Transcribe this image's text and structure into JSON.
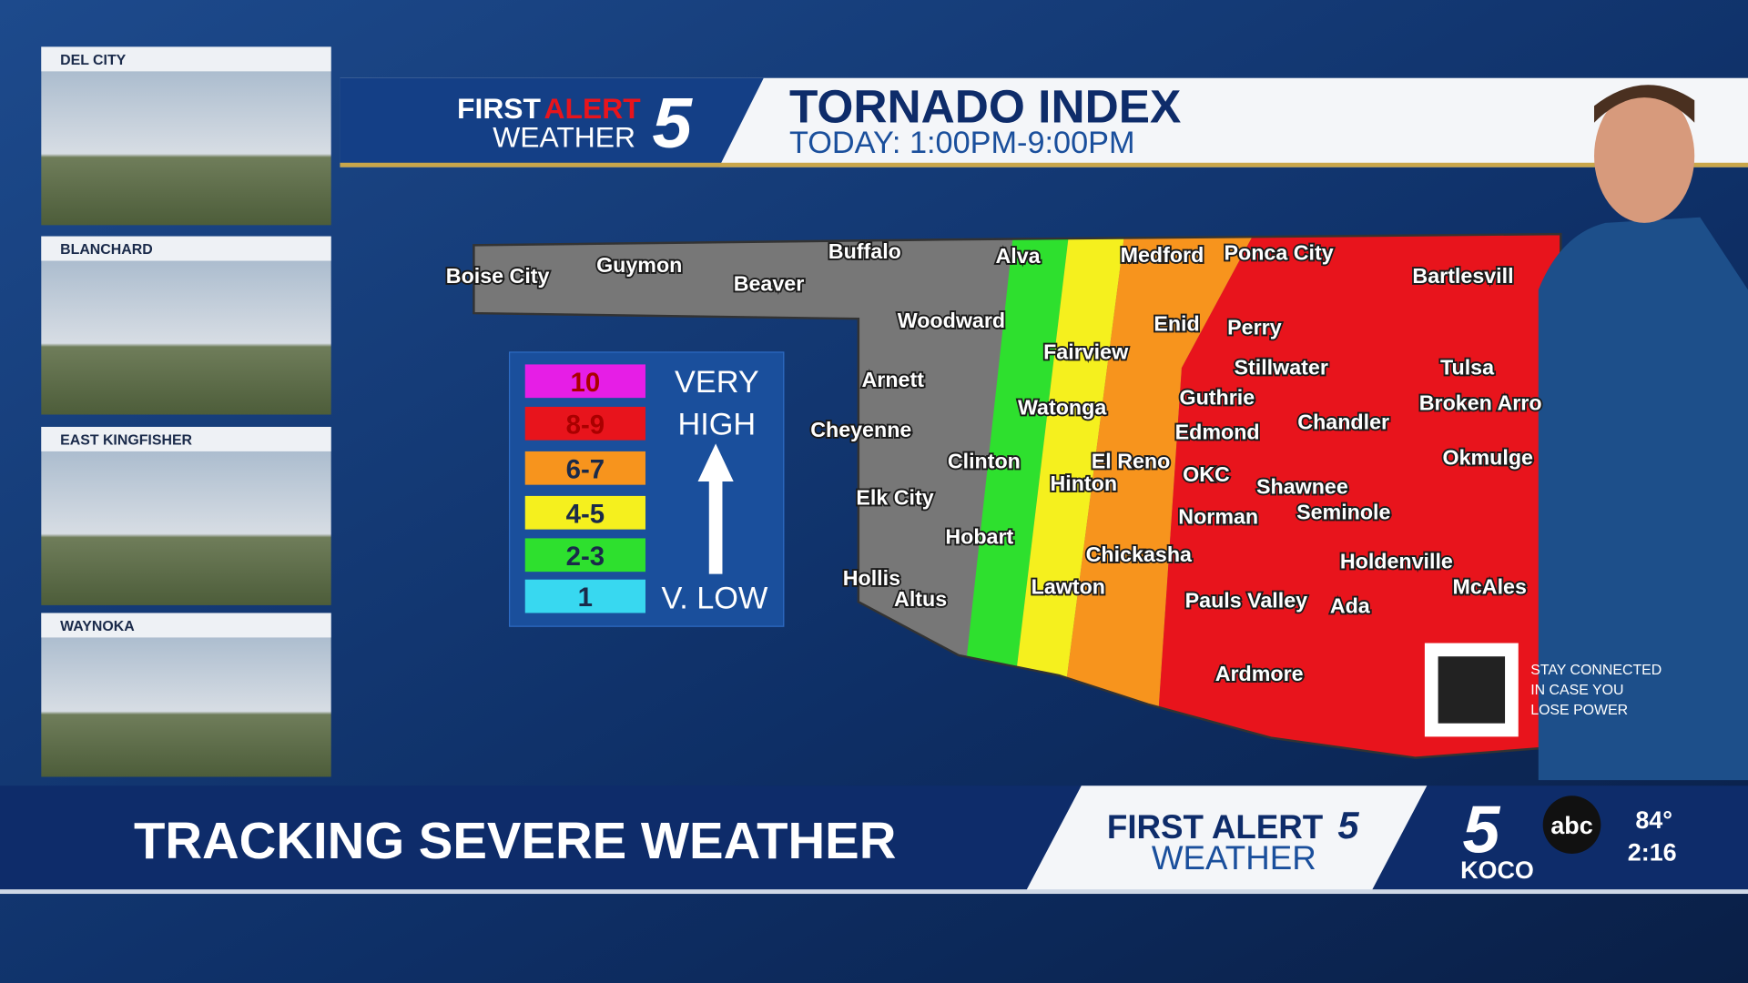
{
  "cameras": [
    "DEL CITY",
    "BLANCHARD",
    "EAST KINGFISHER",
    "WAYNOKA"
  ],
  "header": {
    "brand_first": "FIRST",
    "brand_alert": "ALERT",
    "brand_weather": "WEATHER",
    "brand_number": "5",
    "title": "TORNADO INDEX",
    "subtitle": "TODAY: 1:00PM-9:00PM"
  },
  "legend": {
    "levels": [
      {
        "label": "10",
        "color": "#e61ee6"
      },
      {
        "label": "8-9",
        "color": "#e8141c"
      },
      {
        "label": "6-7",
        "color": "#f7941d"
      },
      {
        "label": "4-5",
        "color": "#f5f01e"
      },
      {
        "label": "2-3",
        "color": "#2ee02e"
      },
      {
        "label": "1",
        "color": "#38d8f0"
      }
    ],
    "top_line1": "VERY",
    "top_line2": "HIGH",
    "bottom": "V. LOW"
  },
  "map": {
    "cities": [
      "Boise City",
      "Guymon",
      "Beaver",
      "Buffalo",
      "Alva",
      "Medford",
      "Ponca City",
      "Bartlesvill",
      "Woodward",
      "Enid",
      "Perry",
      "Fairview",
      "Stillwater",
      "Tulsa",
      "Arnett",
      "Guthrie",
      "Watonga",
      "Broken Arro",
      "Cheyenne",
      "Edmond",
      "Chandler",
      "Clinton",
      "El Reno",
      "Okmulge",
      "OKC",
      "Shawnee",
      "Hinton",
      "Elk City",
      "Norman",
      "Seminole",
      "Hobart",
      "Chickasha",
      "Holdenville",
      "Hollis",
      "Lawton",
      "McAles",
      "Altus",
      "Pauls Valley",
      "Ada",
      "Ardmore"
    ]
  },
  "qr": {
    "line1": "STAY CONNECTED",
    "line2": "IN CASE YOU",
    "line3": "LOSE POWER"
  },
  "lower_third": {
    "headline": "TRACKING SEVERE WEATHER",
    "brand_line1": "FIRST ALERT",
    "brand_number": "5",
    "brand_line2": "WEATHER",
    "station": "KOCO",
    "network": "abc",
    "temperature": "84°",
    "time": "2:16"
  }
}
